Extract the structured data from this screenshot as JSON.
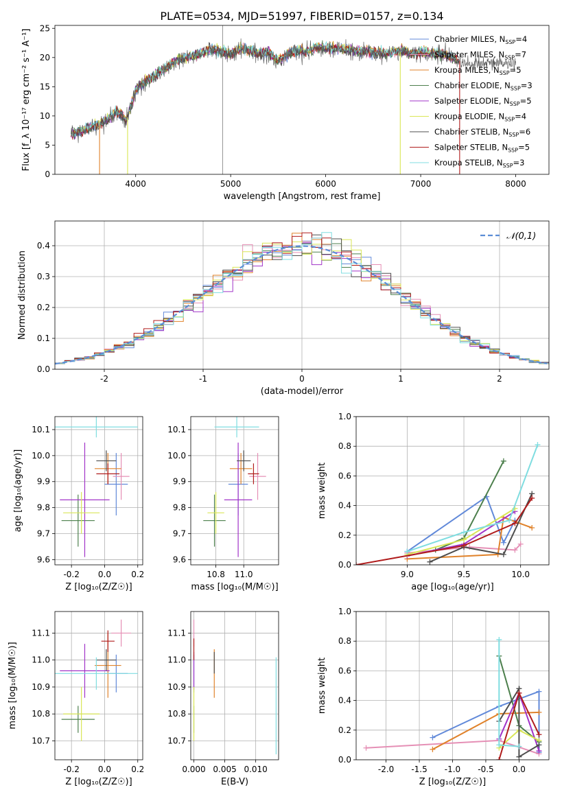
{
  "title": "PLATE=0534, MJD=51997, FIBERID=0157, z=0.134",
  "models": [
    {
      "name": "Chabrier MILES",
      "nssp": "4",
      "color": "#6189d9"
    },
    {
      "name": "Salpeter MILES",
      "nssp": "7",
      "color": "#e58fb5"
    },
    {
      "name": "Kroupa MILES",
      "nssp": "5",
      "color": "#e0822a"
    },
    {
      "name": "Chabrier ELODIE",
      "nssp": "3",
      "color": "#4c7f4c"
    },
    {
      "name": "Salpeter ELODIE",
      "nssp": "5",
      "color": "#a133c8"
    },
    {
      "name": "Kroupa ELODIE",
      "nssp": "4",
      "color": "#d9e655"
    },
    {
      "name": "Chabrier STELIB",
      "nssp": "6",
      "color": "#4d4d4d"
    },
    {
      "name": "Salpeter STELIB",
      "nssp": "5",
      "color": "#b01c1c"
    },
    {
      "name": "Kroupa STELIB",
      "nssp": "3",
      "color": "#7fdde0"
    }
  ],
  "chart_data": [
    {
      "id": "spectrum",
      "type": "line",
      "xlabel": "wavelength [Angstrom, rest frame]",
      "ylabel": "Flux [f_λ 10⁻¹⁷ erg cm⁻² s⁻¹ A⁻¹]",
      "xlim": [
        3150,
        8350
      ],
      "ylim": [
        0,
        25.5
      ],
      "xticks": [
        4000,
        5000,
        6000,
        7000,
        8000
      ],
      "yticks": [
        0,
        5,
        10,
        15,
        20,
        25
      ],
      "x": [
        3320,
        3400,
        3500,
        3600,
        3700,
        3800,
        3850,
        3900,
        3950,
        4000,
        4100,
        4200,
        4300,
        4400,
        4500,
        4600,
        4700,
        4800,
        4900,
        5000,
        5100,
        5200,
        5300,
        5400,
        5500,
        5600,
        5700,
        5800,
        5900,
        6000,
        6100,
        6200,
        6300,
        6400,
        6500,
        6600,
        6700,
        6800,
        6900,
        7000,
        7100,
        7200,
        7300,
        7400
      ],
      "y": [
        6.8,
        7.2,
        7.8,
        8.3,
        9.3,
        10.5,
        10.0,
        9.0,
        11.5,
        14.2,
        15.8,
        16.7,
        17.8,
        19.0,
        19.8,
        20.0,
        20.6,
        21.2,
        21.0,
        20.3,
        21.5,
        21.0,
        20.5,
        20.7,
        19.3,
        20.5,
        21.0,
        21.0,
        21.6,
        21.5,
        21.4,
        21.3,
        21.0,
        20.9,
        20.8,
        20.6,
        20.8,
        21.0,
        20.6,
        20.8,
        20.6,
        20.5,
        20.0,
        19.4
      ],
      "series_note_values": [],
      "vline_x": 4915,
      "legend_position": "upper right",
      "grid": false
    },
    {
      "id": "residuals",
      "type": "bar",
      "xlabel": "(data-model)/error",
      "ylabel": "Normed distribution",
      "xlim": [
        -2.5,
        2.5
      ],
      "ylim": [
        0,
        0.48
      ],
      "xticks": [
        -2,
        -1,
        0,
        1,
        2
      ],
      "yticks": [
        0.0,
        0.1,
        0.2,
        0.3,
        0.4
      ],
      "bin_width": 0.1,
      "gaussian_label": "𝒩(0,1)",
      "legend_position": "upper right",
      "grid": true
    },
    {
      "id": "age-vs-Z",
      "type": "scatter",
      "xlabel": "Z [log₁₀(Z/Z☉)]",
      "ylabel": "age  [log₁₀(age/yr)]",
      "xlim": [
        -0.3,
        0.23
      ],
      "ylim": [
        9.58,
        10.15
      ],
      "xticks": [
        -0.2,
        0.0,
        0.2
      ],
      "yticks": [
        9.6,
        9.7,
        9.8,
        9.9,
        10.0,
        10.1
      ],
      "points": [
        {
          "x": 0.07,
          "y": 9.89,
          "xerr": 0.07,
          "yerr": 0.12
        },
        {
          "x": 0.1,
          "y": 9.92,
          "xerr": 0.05,
          "yerr": 0.09
        },
        {
          "x": 0.02,
          "y": 9.95,
          "xerr": 0.08,
          "yerr": 0.06
        },
        {
          "x": -0.16,
          "y": 9.75,
          "xerr": 0.1,
          "yerr": 0.1
        },
        {
          "x": -0.12,
          "y": 9.83,
          "xerr": 0.15,
          "yerr": 0.22
        },
        {
          "x": -0.14,
          "y": 9.78,
          "xerr": 0.11,
          "yerr": 0.08
        },
        {
          "x": 0.01,
          "y": 9.98,
          "xerr": 0.06,
          "yerr": 0.04
        },
        {
          "x": 0.02,
          "y": 9.93,
          "xerr": 0.07,
          "yerr": 0.04
        },
        {
          "x": -0.05,
          "y": 10.11,
          "xerr": 0.25,
          "yerr": 0.04
        }
      ],
      "grid": true
    },
    {
      "id": "age-vs-mass",
      "type": "scatter",
      "xlabel": "mass [log₁₀(M/M☉)]",
      "ylabel": "",
      "xlim": [
        10.62,
        11.25
      ],
      "ylim": [
        9.58,
        10.15
      ],
      "xticks": [
        10.8,
        11.0
      ],
      "yticks": [
        9.6,
        9.7,
        9.8,
        9.9,
        10.0,
        10.1
      ],
      "points": [
        {
          "x": 10.96,
          "y": 9.89,
          "xerr": 0.07,
          "yerr": 0.12
        },
        {
          "x": 11.1,
          "y": 9.92,
          "xerr": 0.06,
          "yerr": 0.09
        },
        {
          "x": 10.98,
          "y": 9.95,
          "xerr": 0.08,
          "yerr": 0.06
        },
        {
          "x": 10.79,
          "y": 9.75,
          "xerr": 0.08,
          "yerr": 0.1
        },
        {
          "x": 10.96,
          "y": 9.83,
          "xerr": 0.1,
          "yerr": 0.22
        },
        {
          "x": 10.8,
          "y": 9.78,
          "xerr": 0.06,
          "yerr": 0.08
        },
        {
          "x": 11.0,
          "y": 9.98,
          "xerr": 0.05,
          "yerr": 0.04
        },
        {
          "x": 11.07,
          "y": 9.93,
          "xerr": 0.04,
          "yerr": 0.04
        },
        {
          "x": 10.95,
          "y": 10.11,
          "xerr": 0.16,
          "yerr": 0.04
        }
      ],
      "grid": true
    },
    {
      "id": "weight-vs-age",
      "type": "line",
      "xlabel": "age  [log₁₀(age/yr)]",
      "ylabel": "mass weight",
      "xlim": [
        8.55,
        10.25
      ],
      "ylim": [
        0,
        1.0
      ],
      "xticks": [
        9.0,
        9.5,
        10.0
      ],
      "yticks": [
        0.0,
        0.2,
        0.4,
        0.6,
        0.8,
        1.0
      ],
      "series": [
        {
          "points": [
            [
              9.0,
              0.09
            ],
            [
              9.7,
              0.46
            ],
            [
              9.85,
              0.15
            ],
            [
              9.95,
              0.3
            ]
          ]
        },
        {
          "points": [
            [
              9.0,
              0.08
            ],
            [
              9.55,
              0.12
            ],
            [
              9.95,
              0.1
            ],
            [
              10.0,
              0.14
            ]
          ]
        },
        {
          "points": [
            [
              9.0,
              0.04
            ],
            [
              9.8,
              0.07
            ],
            [
              9.85,
              0.32
            ],
            [
              10.1,
              0.25
            ]
          ]
        },
        {
          "points": [
            [
              9.25,
              0.1
            ],
            [
              9.5,
              0.18
            ],
            [
              9.85,
              0.7
            ]
          ]
        },
        {
          "points": [
            [
              9.0,
              0.06
            ],
            [
              9.5,
              0.14
            ],
            [
              9.95,
              0.36
            ]
          ]
        },
        {
          "points": [
            [
              9.0,
              0.07
            ],
            [
              9.5,
              0.17
            ],
            [
              9.95,
              0.38
            ]
          ]
        },
        {
          "points": [
            [
              9.2,
              0.02
            ],
            [
              9.5,
              0.12
            ],
            [
              9.85,
              0.07
            ],
            [
              10.1,
              0.48
            ]
          ]
        },
        {
          "points": [
            [
              8.55,
              0.0
            ],
            [
              9.5,
              0.13
            ],
            [
              9.95,
              0.28
            ],
            [
              10.1,
              0.45
            ]
          ]
        },
        {
          "points": [
            [
              9.0,
              0.09
            ],
            [
              9.5,
              0.22
            ],
            [
              9.9,
              0.3
            ],
            [
              10.15,
              0.81
            ]
          ]
        }
      ],
      "grid": true
    },
    {
      "id": "mass-vs-Z",
      "type": "scatter",
      "xlabel": "Z [log₁₀(Z/Z☉)]",
      "ylabel": "mass [log₁₀(M/M☉)]",
      "xlim": [
        -0.3,
        0.23
      ],
      "ylim": [
        10.63,
        11.18
      ],
      "xticks": [
        -0.2,
        0.0,
        0.2
      ],
      "yticks": [
        10.7,
        10.8,
        10.9,
        11.0,
        11.1
      ],
      "points": [
        {
          "x": 0.07,
          "y": 10.95,
          "xerr": 0.07,
          "yerr": 0.07
        },
        {
          "x": 0.1,
          "y": 11.1,
          "xerr": 0.06,
          "yerr": 0.05
        },
        {
          "x": 0.02,
          "y": 10.98,
          "xerr": 0.08,
          "yerr": 0.12
        },
        {
          "x": -0.16,
          "y": 10.78,
          "xerr": 0.1,
          "yerr": 0.05
        },
        {
          "x": -0.12,
          "y": 10.96,
          "xerr": 0.15,
          "yerr": 0.1
        },
        {
          "x": -0.14,
          "y": 10.8,
          "xerr": 0.11,
          "yerr": 0.1
        },
        {
          "x": 0.01,
          "y": 11.0,
          "xerr": 0.06,
          "yerr": 0.04
        },
        {
          "x": 0.02,
          "y": 11.07,
          "xerr": 0.04,
          "yerr": 0.04
        },
        {
          "x": -0.05,
          "y": 10.95,
          "xerr": 0.25,
          "yerr": 0.06
        }
      ],
      "grid": true
    },
    {
      "id": "mass-vs-EBV",
      "type": "scatter",
      "xlabel": "E(B-V)",
      "ylabel": "",
      "xlim": [
        -0.0005,
        0.0137
      ],
      "ylim": [
        10.63,
        11.18
      ],
      "xticks": [
        0.0,
        0.005,
        0.01
      ],
      "xticklabels": [
        "0.000",
        "0.005",
        "0.010"
      ],
      "yticks": [
        10.7,
        10.8,
        10.9,
        11.0,
        11.1
      ],
      "points": [
        {
          "x": 0.0,
          "y": 10.95,
          "xerr": 0,
          "yerr": 0.07
        },
        {
          "x": 0.0,
          "y": 11.1,
          "xerr": 0,
          "yerr": 0.05
        },
        {
          "x": 0.0033,
          "y": 10.95,
          "xerr": 0,
          "yerr": 0.09
        },
        {
          "x": 0.0,
          "y": 10.78,
          "xerr": 0,
          "yerr": 0.05
        },
        {
          "x": 0.0,
          "y": 10.96,
          "xerr": 0,
          "yerr": 0.07
        },
        {
          "x": 0.0,
          "y": 10.8,
          "xerr": 0,
          "yerr": 0.1
        },
        {
          "x": 0.0033,
          "y": 10.99,
          "xerr": 0,
          "yerr": 0.04
        },
        {
          "x": 0.0,
          "y": 11.04,
          "xerr": 0,
          "yerr": 0.04
        },
        {
          "x": 0.0133,
          "y": 10.83,
          "xerr": 0,
          "yerr": 0.18
        }
      ],
      "grid": true
    },
    {
      "id": "weight-vs-Z",
      "type": "line",
      "xlabel": "Z [log₁₀(Z/Z☉)]",
      "ylabel": "mass weight",
      "xlim": [
        -2.45,
        0.45
      ],
      "ylim": [
        0,
        1.0
      ],
      "xticks": [
        -2.0,
        -1.5,
        -1.0,
        -0.5,
        0.0
      ],
      "yticks": [
        0.0,
        0.2,
        0.4,
        0.6,
        0.8,
        1.0
      ],
      "series": [
        {
          "points": [
            [
              -1.3,
              0.15
            ],
            [
              -0.3,
              0.36
            ],
            [
              0.3,
              0.46
            ],
            [
              0.3,
              0.05
            ]
          ]
        },
        {
          "points": [
            [
              -2.3,
              0.08
            ],
            [
              -0.3,
              0.13
            ],
            [
              0.3,
              0.04
            ]
          ]
        },
        {
          "points": [
            [
              -1.3,
              0.07
            ],
            [
              -0.3,
              0.31
            ],
            [
              0.3,
              0.32
            ]
          ]
        },
        {
          "points": [
            [
              -0.3,
              0.7
            ],
            [
              0.0,
              0.23
            ],
            [
              0.3,
              0.12
            ]
          ]
        },
        {
          "points": [
            [
              -0.3,
              0.14
            ],
            [
              0.0,
              0.45
            ],
            [
              0.3,
              0.06
            ]
          ]
        },
        {
          "points": [
            [
              -0.3,
              0.08
            ],
            [
              0.0,
              0.2
            ],
            [
              0.3,
              0.13
            ]
          ]
        },
        {
          "points": [
            [
              -0.3,
              0.26
            ],
            [
              0.0,
              0.48
            ],
            [
              0.0,
              0.02
            ],
            [
              0.3,
              0.1
            ]
          ]
        },
        {
          "points": [
            [
              -0.3,
              0.0
            ],
            [
              0.0,
              0.45
            ],
            [
              0.3,
              0.17
            ]
          ]
        },
        {
          "points": [
            [
              -0.3,
              0.81
            ],
            [
              -0.3,
              0.1
            ],
            [
              0.0,
              0.09
            ]
          ]
        }
      ],
      "grid": true
    }
  ]
}
